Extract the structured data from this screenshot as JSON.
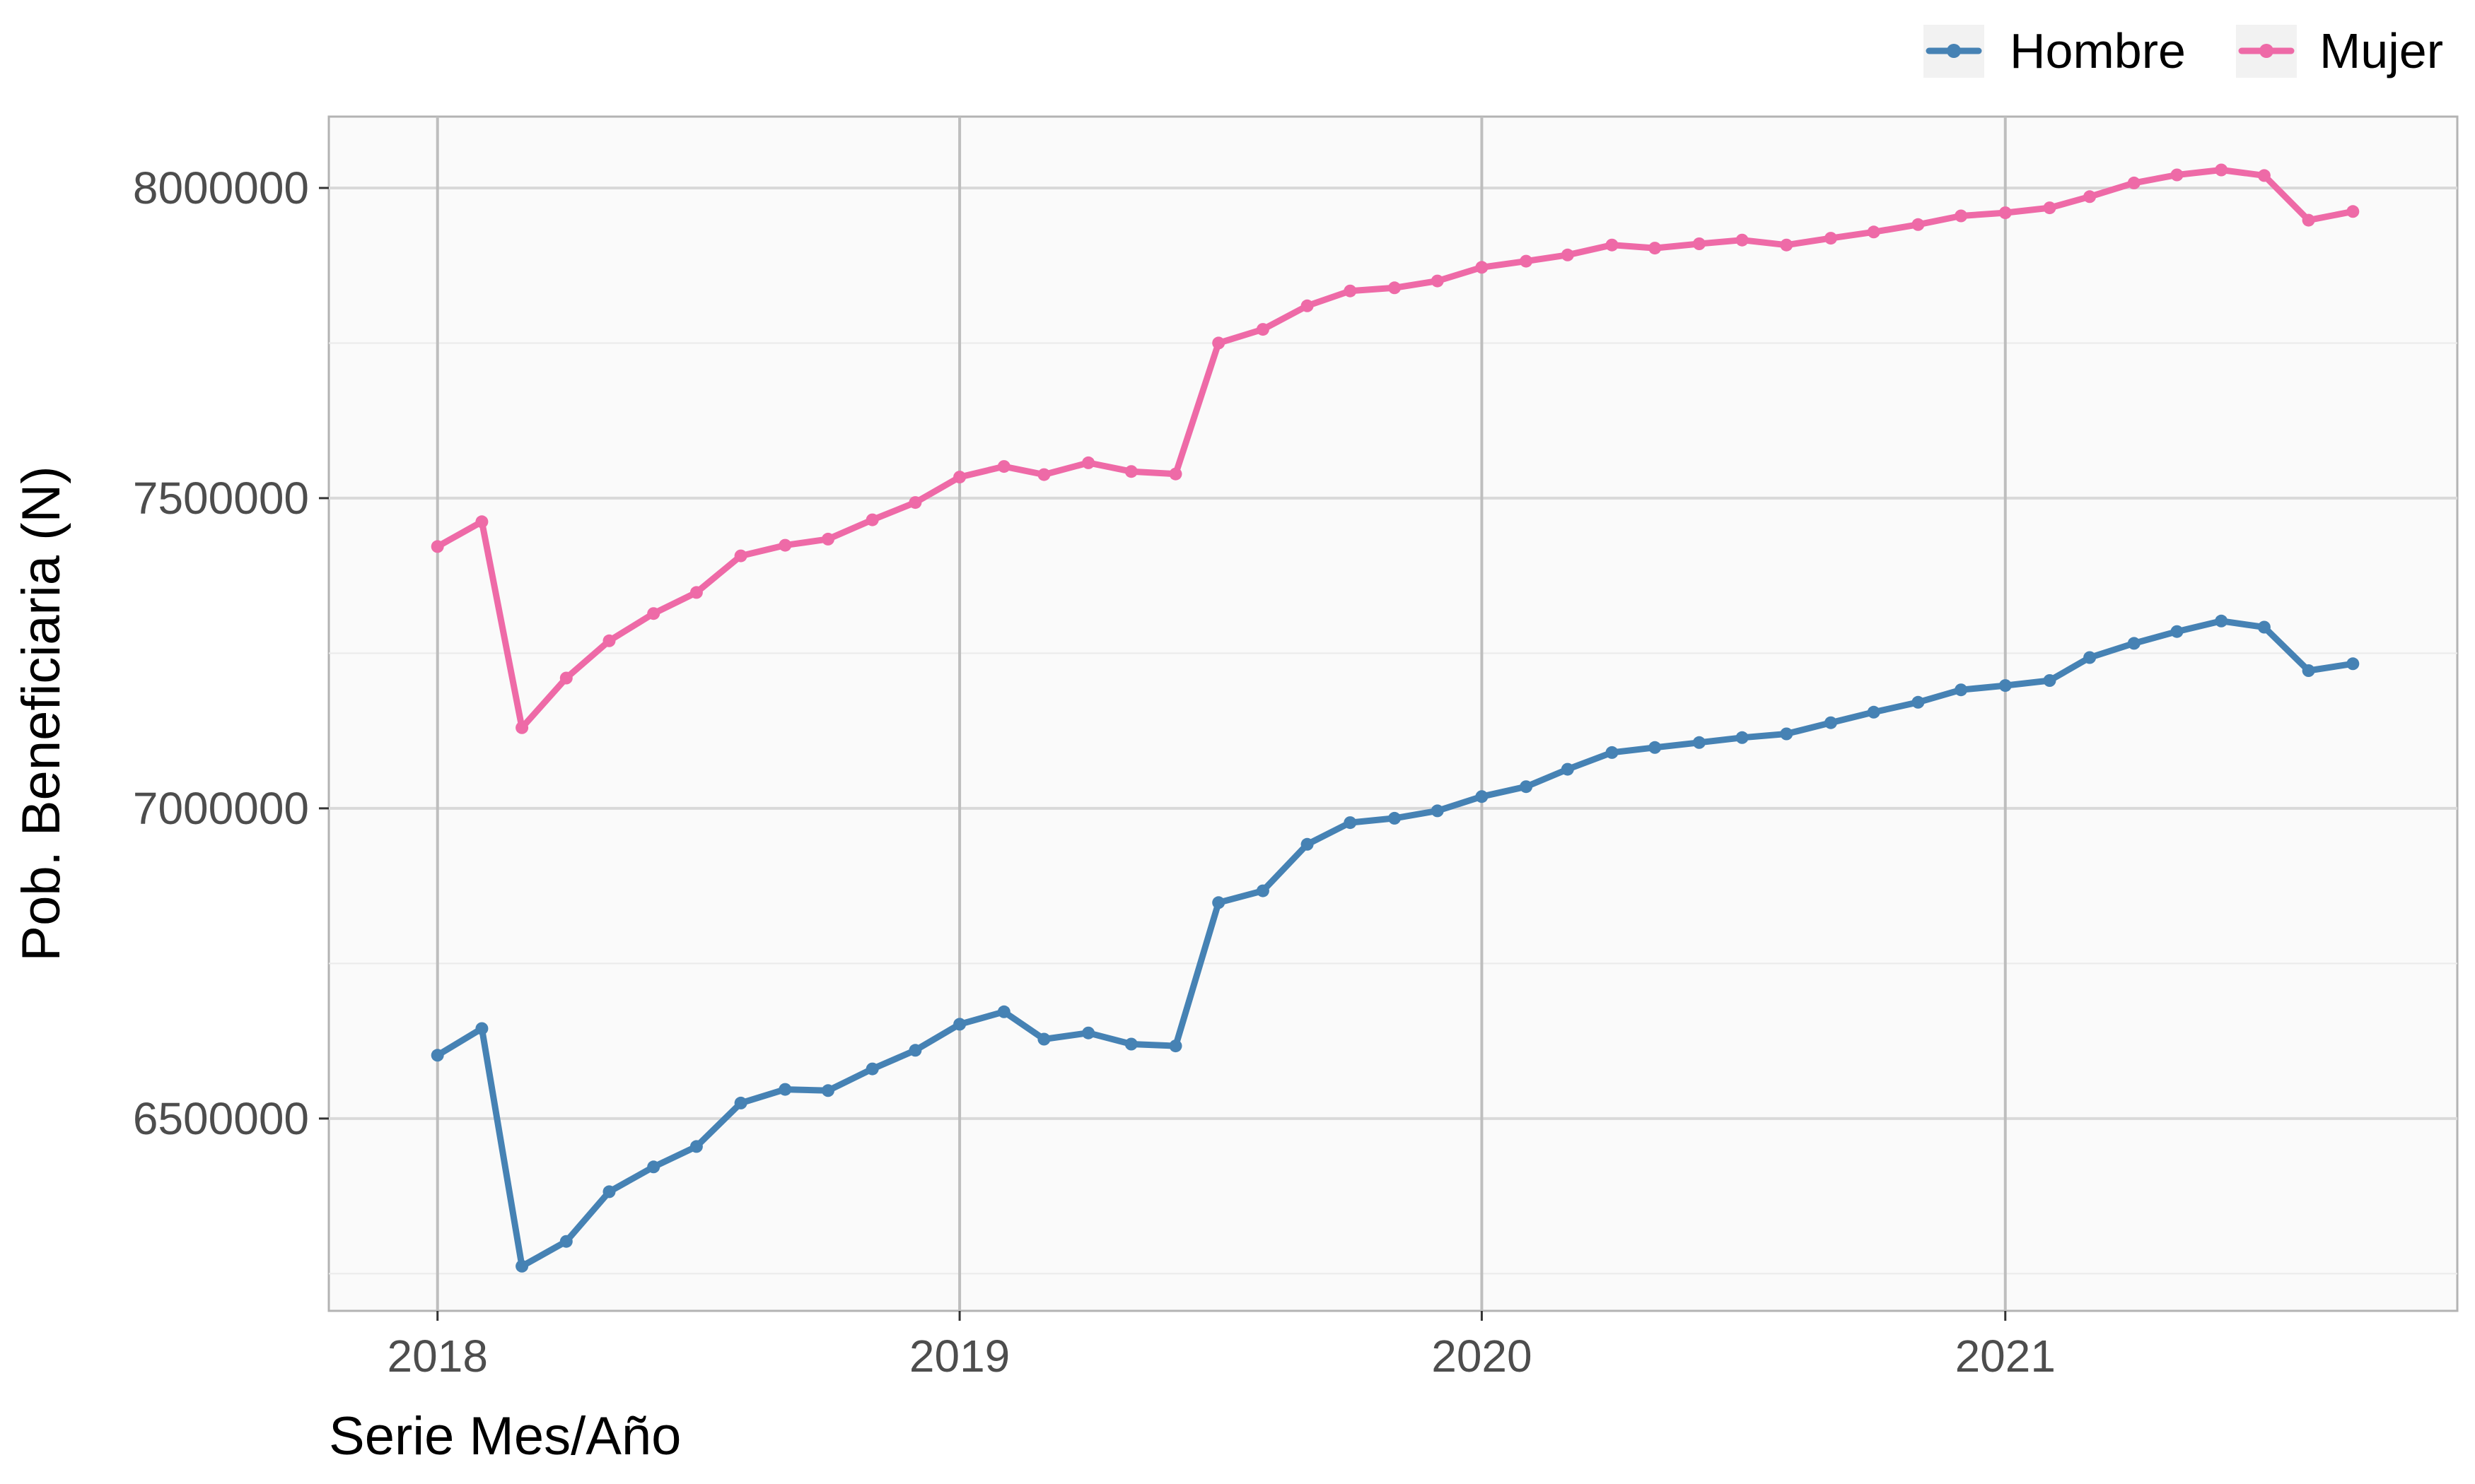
{
  "chart_data": {
    "type": "line",
    "xlabel": "Serie Mes/Año",
    "ylabel": "Pob. Beneficiaria (N)",
    "xlim": [
      "2017-10-17",
      "2021-11-13"
    ],
    "ylim": [
      6190000,
      8115000
    ],
    "x_ticks": [
      {
        "date": "2018-01-01",
        "label": "2018"
      },
      {
        "date": "2019-01-01",
        "label": "2019"
      },
      {
        "date": "2020-01-01",
        "label": "2020"
      },
      {
        "date": "2021-01-01",
        "label": "2021"
      }
    ],
    "y_ticks": [
      6500000,
      7000000,
      7500000,
      8000000
    ],
    "y_tick_labels": [
      "6500000",
      "7000000",
      "7500000",
      "8000000"
    ],
    "grid": true,
    "legend_position": "top-right",
    "x": [
      "2018-01",
      "2018-02",
      "2018-03",
      "2018-04",
      "2018-05",
      "2018-06",
      "2018-07",
      "2018-08",
      "2018-09",
      "2018-10",
      "2018-11",
      "2018-12",
      "2019-01",
      "2019-02",
      "2019-03",
      "2019-04",
      "2019-05",
      "2019-06",
      "2019-07",
      "2019-08",
      "2019-09",
      "2019-10",
      "2019-11",
      "2019-12",
      "2020-01",
      "2020-02",
      "2020-03",
      "2020-04",
      "2020-05",
      "2020-06",
      "2020-07",
      "2020-08",
      "2020-09",
      "2020-10",
      "2020-11",
      "2020-12",
      "2021-01",
      "2021-02",
      "2021-03",
      "2021-04",
      "2021-05",
      "2021-06",
      "2021-07",
      "2021-08",
      "2021-09"
    ],
    "series": [
      {
        "name": "Hombre",
        "color": "#4682b4",
        "values": [
          6602000,
          6645000,
          6262000,
          6302000,
          6382000,
          6422000,
          6455000,
          6525000,
          6547000,
          6545000,
          6580000,
          6610000,
          6652000,
          6672000,
          6628000,
          6638000,
          6620000,
          6617000,
          6848000,
          6867000,
          6942000,
          6977000,
          6984000,
          6996000,
          7019000,
          7035000,
          7063000,
          7090000,
          7098000,
          7106000,
          7114000,
          7120000,
          7138000,
          7155000,
          7171000,
          7191000,
          7198000,
          7206000,
          7243000,
          7266000,
          7285000,
          7302000,
          7292000,
          7222000,
          7233000
        ]
      },
      {
        "name": "Mujer",
        "color": "#ee6aa7",
        "values": [
          7422000,
          7462000,
          7130000,
          7210000,
          7270000,
          7314000,
          7348000,
          7407000,
          7424000,
          7434000,
          7465000,
          7493000,
          7534000,
          7551000,
          7538000,
          7557000,
          7543000,
          7539000,
          7750000,
          7772000,
          7810000,
          7834000,
          7839000,
          7850000,
          7872000,
          7882000,
          7892000,
          7908000,
          7903000,
          7910000,
          7916000,
          7908000,
          7919000,
          7929000,
          7941000,
          7955000,
          7960000,
          7968000,
          7986000,
          8008000,
          8021000,
          8029000,
          8020000,
          7948000,
          7962000
        ]
      }
    ]
  }
}
